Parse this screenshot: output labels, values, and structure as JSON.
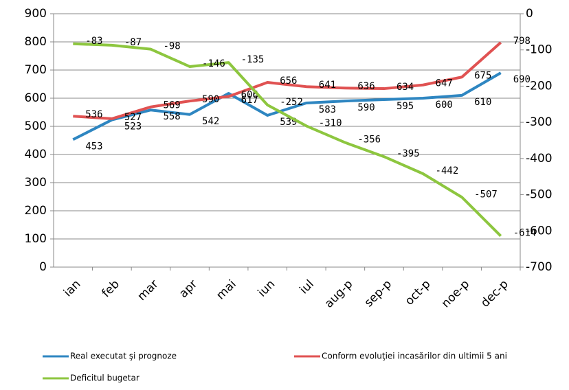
{
  "chart_data": {
    "type": "line",
    "categories": [
      "ian",
      "feb",
      "mar",
      "apr",
      "mai",
      "iun",
      "iul",
      "aug-p",
      "sep-p",
      "oct-p",
      "noe-p",
      "dec-p"
    ],
    "series": [
      {
        "name": "Real executat şi prognoze",
        "color": "#2e86c1",
        "values": [
          453,
          523,
          558,
          542,
          617,
          539,
          583,
          590,
          595,
          600,
          610,
          690
        ]
      },
      {
        "name": "Conform evoluţiei incasărilor din ultimii 5 ani",
        "color": "#e05252",
        "values": [
          536,
          527,
          569,
          590,
          606,
          656,
          641,
          636,
          634,
          647,
          675,
          798
        ]
      },
      {
        "name": "Deficitul bugetar",
        "color": "#8dc63f",
        "axis": "y2",
        "values": [
          -83,
          -87,
          -98,
          -146,
          -135,
          -252,
          -310,
          -356,
          -395,
          -442,
          -507,
          -614
        ]
      }
    ],
    "ylim": [
      0,
      900
    ],
    "yticks": [
      0,
      100,
      200,
      300,
      400,
      500,
      600,
      700,
      800,
      900
    ],
    "y2lim": [
      -700,
      0
    ],
    "y2ticks": [
      -700,
      -600,
      -500,
      -400,
      -300,
      -200,
      -100,
      0
    ],
    "grid": true
  }
}
